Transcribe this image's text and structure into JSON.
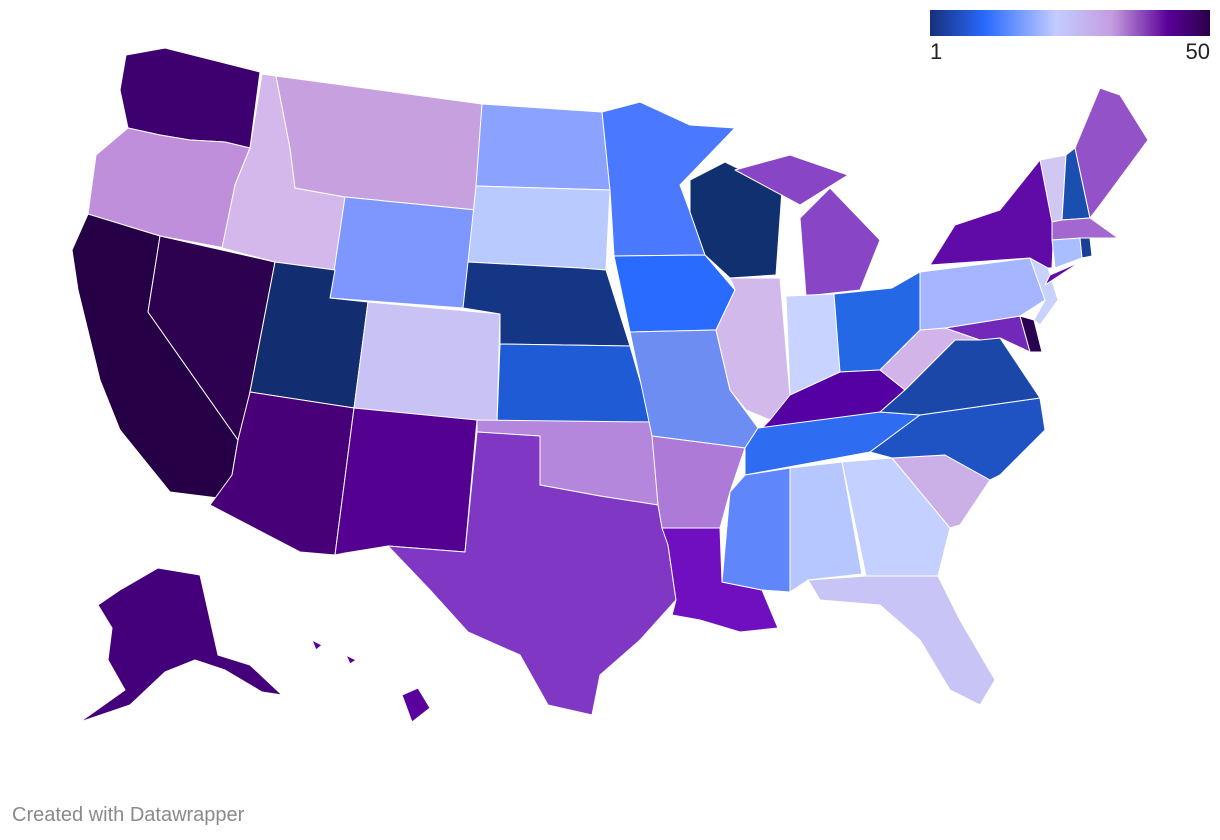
{
  "legend": {
    "min_label": "1",
    "max_label": "50",
    "gradient_colors": [
      "#16307a",
      "#2a6bff",
      "#c3ccff",
      "#c49ddf",
      "#5a0099",
      "#2a004a"
    ]
  },
  "footer": {
    "credit": "Created with Datawrapper"
  },
  "states": [
    {
      "code": "WA",
      "color": "#3f006f"
    },
    {
      "code": "OR",
      "color": "#bf8fdc"
    },
    {
      "code": "CA",
      "color": "#250046"
    },
    {
      "code": "NV",
      "color": "#2d0050"
    },
    {
      "code": "ID",
      "color": "#d4b8ec"
    },
    {
      "code": "MT",
      "color": "#c7a0e0"
    },
    {
      "code": "WY",
      "color": "#7d97ff"
    },
    {
      "code": "UT",
      "color": "#122d70"
    },
    {
      "code": "AZ",
      "color": "#480079"
    },
    {
      "code": "CO",
      "color": "#c8c2f5"
    },
    {
      "code": "NM",
      "color": "#540090"
    },
    {
      "code": "ND",
      "color": "#8ca2ff"
    },
    {
      "code": "SD",
      "color": "#b9caff"
    },
    {
      "code": "NE",
      "color": "#143685"
    },
    {
      "code": "KS",
      "color": "#1f5bd5"
    },
    {
      "code": "OK",
      "color": "#b486dc"
    },
    {
      "code": "TX",
      "color": "#8038c4"
    },
    {
      "code": "MN",
      "color": "#4a79ff"
    },
    {
      "code": "IA",
      "color": "#2a6bff"
    },
    {
      "code": "MO",
      "color": "#6d8df2"
    },
    {
      "code": "AR",
      "color": "#ad7ad8"
    },
    {
      "code": "LA",
      "color": "#6f0fc0"
    },
    {
      "code": "WI",
      "color": "#103070"
    },
    {
      "code": "IL",
      "color": "#d2b9ec"
    },
    {
      "code": "MI",
      "color": "#8846c6"
    },
    {
      "code": "IN",
      "color": "#c8d4ff"
    },
    {
      "code": "OH",
      "color": "#2468e6"
    },
    {
      "code": "KY",
      "color": "#5500a2"
    },
    {
      "code": "TN",
      "color": "#2e6df2"
    },
    {
      "code": "MS",
      "color": "#5f86fa"
    },
    {
      "code": "AL",
      "color": "#b6c6ff"
    },
    {
      "code": "GA",
      "color": "#c4d0ff"
    },
    {
      "code": "FL",
      "color": "#c8c4f5"
    },
    {
      "code": "SC",
      "color": "#cbb0e8"
    },
    {
      "code": "NC",
      "color": "#1f53c4"
    },
    {
      "code": "VA",
      "color": "#1b48a8"
    },
    {
      "code": "WV",
      "color": "#d2b3ea"
    },
    {
      "code": "PA",
      "color": "#a5b5ff"
    },
    {
      "code": "NY",
      "color": "#600aa8"
    },
    {
      "code": "VT",
      "color": "#d0c8f2"
    },
    {
      "code": "NH",
      "color": "#1a4fb0"
    },
    {
      "code": "ME",
      "color": "#9452c8"
    },
    {
      "code": "MA",
      "color": "#a268cf"
    },
    {
      "code": "CT",
      "color": "#a9beff"
    },
    {
      "code": "RI",
      "color": "#1b3f94"
    },
    {
      "code": "NJ",
      "color": "#c8d2ff"
    },
    {
      "code": "DE",
      "color": "#2a0050"
    },
    {
      "code": "MD",
      "color": "#7228b8"
    },
    {
      "code": "AK",
      "color": "#44007a"
    },
    {
      "code": "HI",
      "color": "#5a009c"
    }
  ]
}
